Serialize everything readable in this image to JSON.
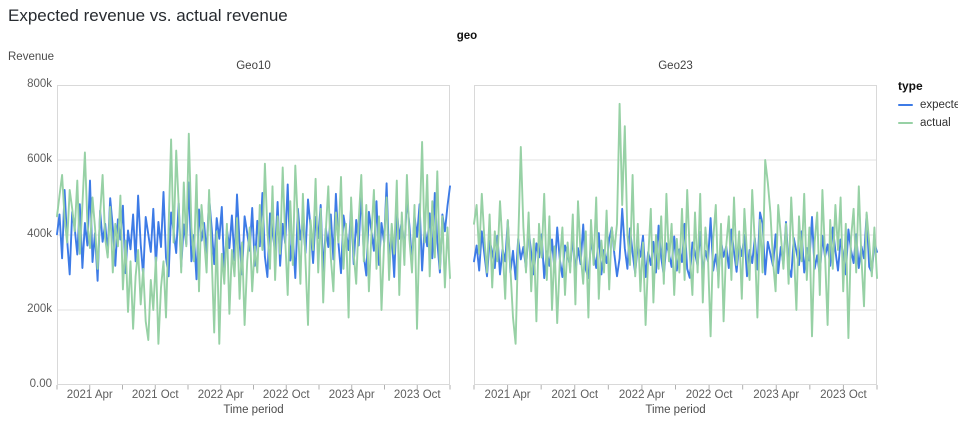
{
  "chart_data": {
    "type": "line",
    "title": "Expected revenue vs. actual revenue",
    "facet_field": "geo",
    "x": {
      "label": "Time period",
      "domain_months": 36,
      "domain": [
        "2021-01",
        "2024-01"
      ],
      "labeled_ticks": [
        {
          "month": 3,
          "label": "2021 Apr"
        },
        {
          "month": 9,
          "label": "2021 Oct"
        },
        {
          "month": 15,
          "label": "2022 Apr"
        },
        {
          "month": 21,
          "label": "2022 Oct"
        },
        {
          "month": 27,
          "label": "2023 Apr"
        },
        {
          "month": 33,
          "label": "2023 Oct"
        }
      ],
      "minor_ticks_months": [
        0,
        6,
        12,
        18,
        24,
        30,
        36
      ],
      "cadence": "weekly"
    },
    "y": {
      "label": "Revenue",
      "unit": "thousands",
      "domain": [
        0,
        800
      ],
      "ticks": [
        {
          "value": 0,
          "label": "0.00"
        },
        {
          "value": 200,
          "label": "200k"
        },
        {
          "value": 400,
          "label": "400k"
        },
        {
          "value": 600,
          "label": "600k"
        },
        {
          "value": 800,
          "label": "800k"
        }
      ],
      "gridlines": [
        200,
        400,
        600
      ]
    },
    "legend": {
      "title": "type",
      "items": [
        {
          "label": "expected",
          "color": "#3d7be6"
        },
        {
          "label": "actual",
          "color": "#97d1a5"
        }
      ]
    },
    "colors": {
      "expected": "#3d7be6",
      "actual": "#97d1a5",
      "grid": "#e2e2e2",
      "border": "#d9d9d9",
      "tick": "#b0b0b0"
    },
    "facets": [
      {
        "name": "Geo10",
        "series": [
          {
            "name": "expected",
            "values": [
              402,
              455,
              338,
              520,
              388,
              295,
              462,
              418,
              348,
              482,
              312,
              432,
              372,
              545,
              328,
              405,
              278,
              465,
              382,
              430,
              352,
              498,
              420,
              318,
              442,
              388,
              478,
              298,
              412,
              362,
              455,
              330,
              505,
              375,
              292,
              448,
              402,
              355,
              470,
              320,
              435,
              368,
              515,
              340,
              290,
              460,
              410,
              352,
              485,
              315,
              428,
              375,
              540,
              330,
              400,
              282,
              468,
              385,
              432,
              350,
              500,
              418,
              322,
              445,
              390,
              475,
              300,
              415,
              365,
              452,
              332,
              508,
              378,
              295,
              450,
              405,
              358,
              472,
              318,
              438,
              370,
              512,
              342,
              288,
              458,
              408,
              355,
              488,
              318,
              430,
              378,
              535,
              332,
              398,
              285,
              470,
              388,
              435,
              352,
              495,
              422,
              325,
              448,
              392,
              480,
              302,
              418,
              368,
              455,
              335,
              510,
              380,
              298,
              452,
              408,
              360,
              475,
              322,
              440,
              372,
              515,
              345,
              292,
              462,
              412,
              358,
              490,
              320,
              432,
              380,
              538,
              335,
              402,
              288,
              472,
              390,
              438,
              355,
              500,
              425,
              328,
              450,
              395,
              482,
              305,
              420,
              370,
              458,
              338,
              512,
              382,
              300,
              455,
              410,
              478,
              530
            ]
          },
          {
            "name": "actual",
            "values": [
              450,
              505,
              560,
              445,
              380,
              520,
              470,
              410,
              545,
              350,
              480,
              620,
              430,
              365,
              500,
              420,
              310,
              455,
              560,
              390,
              340,
              475,
              300,
              430,
              370,
              505,
              255,
              385,
              195,
              330,
              150,
              290,
              360,
              215,
              310,
              170,
              120,
              280,
              200,
              340,
              110,
              260,
              330,
              180,
              420,
              655,
              380,
              625,
              480,
              300,
              540,
              370,
              670,
              420,
              330,
              560,
              250,
              480,
              390,
              300,
              520,
              340,
              140,
              410,
              110,
              350,
              270,
              430,
              190,
              360,
              290,
              445,
              230,
              380,
              160,
              330,
              420,
              250,
              370,
              300,
              480,
              360,
              590,
              410,
              310,
              530,
              280,
              450,
              350,
              580,
              390,
              240,
              490,
              320,
              585,
              430,
              270,
              510,
              330,
              160,
              440,
              360,
              550,
              300,
              470,
              220,
              410,
              530,
              340,
              250,
              460,
              380,
              555,
              310,
              430,
              180,
              500,
              350,
              270,
              440,
              560,
              330,
              480,
              250,
              400,
              520,
              310,
              450,
              200,
              380,
              500,
              280,
              430,
              350,
              545,
              240,
              460,
              320,
              560,
              390,
              300,
              480,
              150,
              420,
              648,
              380,
              560,
              290,
              490,
              340,
              570,
              310,
              450,
              260,
              420,
              285
            ]
          }
        ]
      },
      {
        "name": "Geo23",
        "series": [
          {
            "name": "expected",
            "values": [
              330,
              372,
              305,
              410,
              348,
              290,
              385,
              355,
              312,
              398,
              295,
              362,
              330,
              438,
              300,
              358,
              282,
              390,
              335,
              368,
              310,
              415,
              352,
              295,
              378,
              340,
              402,
              285,
              356,
              318,
              388,
              302,
              420,
              335,
              288,
              372,
              348,
              315,
              395,
              300,
              365,
              322,
              428,
              308,
              285,
              382,
              350,
              312,
              405,
              295,
              360,
              325,
              390,
              420,
              348,
              290,
              338,
              470,
              365,
              310,
              418,
              352,
              298,
              375,
              342,
              398,
              288,
              355,
              320,
              382,
              300,
              425,
              340,
              292,
              378,
              350,
              315,
              396,
              305,
              362,
              328,
              430,
              310,
              286,
              380,
              352,
              318,
              408,
              298,
              358,
              330,
              445,
              305,
              348,
              290,
              385,
              342,
              370,
              312,
              415,
              355,
              302,
              378,
              344,
              400,
              290,
              360,
              325,
              392,
              308,
              460,
              430,
              295,
              382,
              350,
              318,
              402,
              298,
              368,
              322,
              435,
              315,
              288,
              392,
              356,
              320,
              410,
              300,
              365,
              332,
              448,
              310,
              346,
              292,
              398,
              342,
              375,
              318,
              420,
              358,
              305,
              388,
              348,
              295,
              415,
              360,
              325,
              402,
              312,
              370,
              338,
              455,
              315,
              300,
              378,
              355
            ]
          },
          {
            "name": "actual",
            "values": [
              430,
              480,
              350,
              510,
              390,
              300,
              455,
              260,
              410,
              330,
              490,
              370,
              230,
              440,
              310,
              180,
              110,
              380,
              635,
              420,
              300,
              460,
              250,
              390,
              170,
              430,
              340,
              510,
              280,
              450,
              200,
              370,
              165,
              330,
              420,
              240,
              380,
              300,
              455,
              215,
              490,
              350,
              270,
              410,
              180,
              440,
              320,
              500,
              230,
              385,
              300,
              465,
              255,
              420,
              360,
              430,
              750,
              480,
              690,
              400,
              320,
              560,
              290,
              430,
              250,
              380,
              160,
              340,
              470,
              220,
              400,
              310,
              450,
              270,
              510,
              330,
              430,
              240,
              390,
              300,
              470,
              280,
              520,
              350,
              240,
              460,
              300,
              510,
              220,
              420,
              340,
              130,
              390,
              480,
              260,
              430,
              170,
              370,
              450,
              280,
              500,
              320,
              410,
              230,
              470,
              350,
              280,
              520,
              380,
              180,
              440,
              300,
              600,
              540,
              460,
              330,
              250,
              480,
              400,
              310,
              430,
              270,
              500,
              360,
              200,
              450,
              330,
              510,
              280,
              420,
              130,
              380,
              460,
              240,
              520,
              350,
              160,
              440,
              310,
              480,
              360,
              500,
              250,
              430,
              125,
              390,
              470,
              300,
              530,
              340,
              210,
              460,
              380,
              290,
              420,
              285
            ]
          }
        ]
      }
    ]
  }
}
